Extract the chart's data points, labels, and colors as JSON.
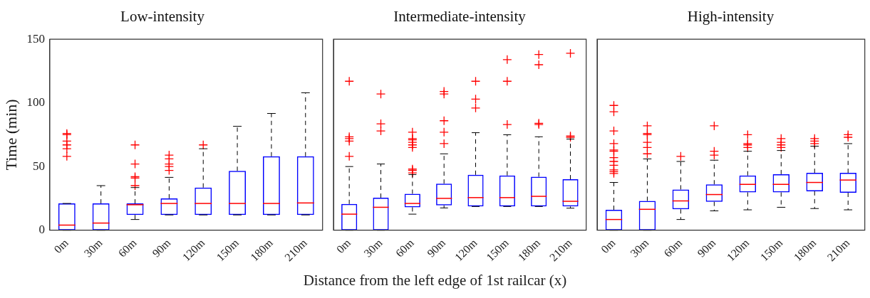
{
  "chart_data": [
    {
      "type": "box",
      "title": "Low-intensity",
      "ylabel": "Time (min)",
      "categories": [
        "0m",
        "30m",
        "60m",
        "90m",
        "120m",
        "150m",
        "180m",
        "210m"
      ],
      "ylim": [
        0,
        150
      ],
      "yticks": [
        0,
        50,
        100,
        150
      ],
      "grid": false,
      "legend": false,
      "series": [
        {
          "color": "#0000ff",
          "boxes": [
            {
              "low": 0,
              "q1": 0,
              "median": 4,
              "q3": 21,
              "high": 21,
              "outliers": [
                58,
                64,
                67,
                70,
                75,
                76
              ]
            },
            {
              "low": 0,
              "q1": 0,
              "median": 5.6,
              "q3": 21,
              "high": 35
            },
            {
              "low": 8.4,
              "q1": 12,
              "median": 20,
              "q3": 21,
              "high": 33.5,
              "outliers": [
                35,
                41,
                42,
                52,
                67
              ]
            },
            {
              "low": 12,
              "q1": 12,
              "median": 21,
              "q3": 25,
              "high": 41.5,
              "outliers": [
                47,
                50,
                52,
                56,
                59
              ]
            },
            {
              "low": 12,
              "q1": 12,
              "median": 21,
              "q3": 33.5,
              "high": 64,
              "outliers": [
                67
              ]
            },
            {
              "low": 12,
              "q1": 12,
              "median": 21,
              "q3": 46.6,
              "high": 81.6
            },
            {
              "low": 12,
              "q1": 12,
              "median": 21,
              "q3": 58,
              "high": 91.7
            },
            {
              "low": 12,
              "q1": 12,
              "median": 21.4,
              "q3": 58,
              "high": 108
            }
          ]
        }
      ]
    },
    {
      "type": "box",
      "title": "Intermediate-intensity",
      "xlabel": "Distance from the left edge of 1st railcar (x)",
      "categories": [
        "0m",
        "30m",
        "60m",
        "90m",
        "120m",
        "150m",
        "180m",
        "210m"
      ],
      "ylim": [
        0,
        150
      ],
      "yticks": [
        0,
        50,
        100,
        150
      ],
      "tick_labels": "x",
      "grid": false,
      "legend": false,
      "series": [
        {
          "color": "#0000ff",
          "boxes": [
            {
              "low": 0,
              "q1": 0,
              "median": 12.6,
              "q3": 20.6,
              "high": 50,
              "outliers": [
                58,
                70,
                72,
                73.4,
                117
              ]
            },
            {
              "low": 0,
              "q1": 0,
              "median": 18,
              "q3": 25.5,
              "high": 52,
              "outliers": [
                78,
                83.6,
                107
              ]
            },
            {
              "low": 12.6,
              "q1": 18,
              "median": 21,
              "q3": 28.6,
              "high": 43.7,
              "outliers": [
                45,
                47,
                48,
                65,
                67,
                69,
                71,
                72,
                77
              ]
            },
            {
              "low": 17.5,
              "q1": 19.5,
              "median": 25,
              "q3": 36.6,
              "high": 60,
              "outliers": [
                68,
                77,
                86,
                107,
                109
              ]
            },
            {
              "low": 18.6,
              "q1": 18.6,
              "median": 25.6,
              "q3": 43.5,
              "high": 76.6,
              "outliers": [
                96,
                103,
                117
              ]
            },
            {
              "low": 18.6,
              "q1": 18.6,
              "median": 25.6,
              "q3": 43,
              "high": 75,
              "outliers": [
                83,
                117,
                134
              ]
            },
            {
              "low": 18.6,
              "q1": 18.6,
              "median": 26.6,
              "q3": 42,
              "high": 73.4,
              "outliers": [
                83,
                84,
                130,
                138
              ]
            },
            {
              "low": 17.3,
              "q1": 18.6,
              "median": 22.7,
              "q3": 40,
              "high": 71.6,
              "outliers": [
                73,
                74,
                139
              ]
            }
          ]
        }
      ]
    },
    {
      "type": "box",
      "title": "High-intensity",
      "categories": [
        "0m",
        "30m",
        "60m",
        "90m",
        "120m",
        "150m",
        "180m",
        "210m"
      ],
      "ylim": [
        0,
        150
      ],
      "yticks": [
        0,
        50,
        100,
        150
      ],
      "tick_labels": "x",
      "grid": false,
      "legend": false,
      "series": [
        {
          "color": "#0000ff",
          "boxes": [
            {
              "low": 0,
              "q1": 0,
              "median": 8.4,
              "q3": 16,
              "high": 37.5,
              "outliers": [
                44.6,
                46,
                47.4,
                51,
                54,
                57,
                62,
                63,
                68,
                78,
                93,
                98
              ]
            },
            {
              "low": 0,
              "q1": 0,
              "median": 16.4,
              "q3": 23,
              "high": 56,
              "outliers": [
                60,
                65,
                69,
                75,
                76,
                82
              ]
            },
            {
              "low": 8.4,
              "q1": 16.4,
              "median": 23,
              "q3": 32,
              "high": 54,
              "outliers": [
                58
              ]
            },
            {
              "low": 15.2,
              "q1": 22.3,
              "median": 28,
              "q3": 36,
              "high": 55,
              "outliers": [
                59,
                62,
                82
              ]
            },
            {
              "low": 16,
              "q1": 29.7,
              "median": 36,
              "q3": 43,
              "high": 62,
              "outliers": [
                65,
                67,
                68,
                75
              ]
            },
            {
              "low": 18,
              "q1": 29.7,
              "median": 36,
              "q3": 44,
              "high": 62.6,
              "outliers": [
                65,
                67,
                69,
                72
              ]
            },
            {
              "low": 17,
              "q1": 30.6,
              "median": 37.5,
              "q3": 45,
              "high": 66,
              "outliers": [
                68,
                70,
                72
              ]
            },
            {
              "low": 16,
              "q1": 29.4,
              "median": 39.4,
              "q3": 45,
              "high": 68,
              "outliers": [
                73,
                75
              ]
            }
          ]
        }
      ]
    }
  ]
}
